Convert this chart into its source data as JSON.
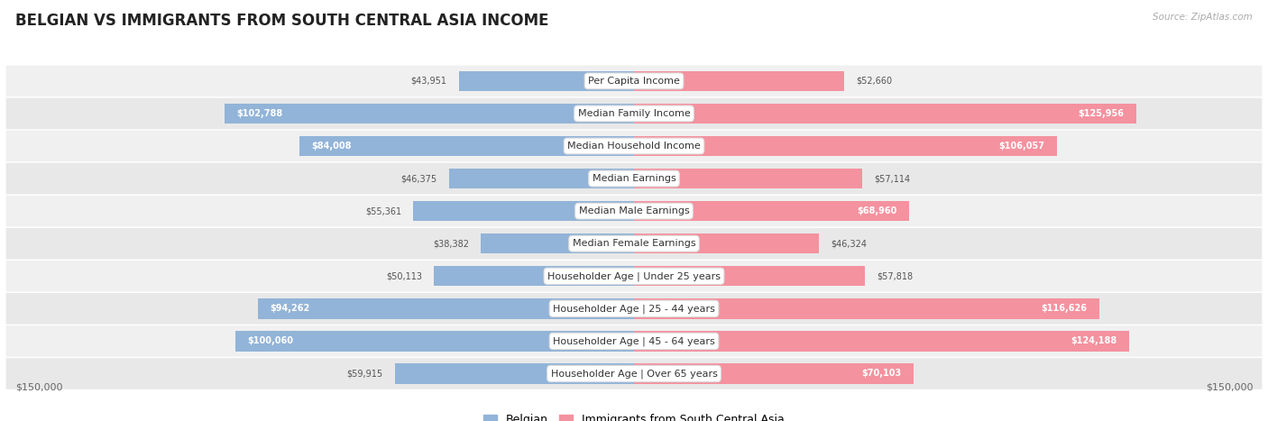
{
  "title": "BELGIAN VS IMMIGRANTS FROM SOUTH CENTRAL ASIA INCOME",
  "source": "Source: ZipAtlas.com",
  "categories": [
    "Per Capita Income",
    "Median Family Income",
    "Median Household Income",
    "Median Earnings",
    "Median Male Earnings",
    "Median Female Earnings",
    "Householder Age | Under 25 years",
    "Householder Age | 25 - 44 years",
    "Householder Age | 45 - 64 years",
    "Householder Age | Over 65 years"
  ],
  "belgian_values": [
    43951,
    102788,
    84008,
    46375,
    55361,
    38382,
    50113,
    94262,
    100060,
    59915
  ],
  "immigrant_values": [
    52660,
    125956,
    106057,
    57114,
    68960,
    46324,
    57818,
    116626,
    124188,
    70103
  ],
  "belgian_color": "#92b4d8",
  "immigrant_color": "#f4929f",
  "max_value": 150000,
  "bg_color": "#ffffff",
  "title_fontsize": 12,
  "label_fontsize": 8,
  "value_fontsize": 7,
  "legend_belgian": "Belgian",
  "legend_immigrant": "Immigrants from South Central Asia",
  "x_label_left": "$150,000",
  "x_label_right": "$150,000",
  "row_colors": [
    "#f0f0f0",
    "#e8e8e8"
  ],
  "inside_threshold": 60000,
  "inside_color_belgian": "#ffffff",
  "inside_color_immigrant": "#ffffff",
  "outside_color": "#555555"
}
